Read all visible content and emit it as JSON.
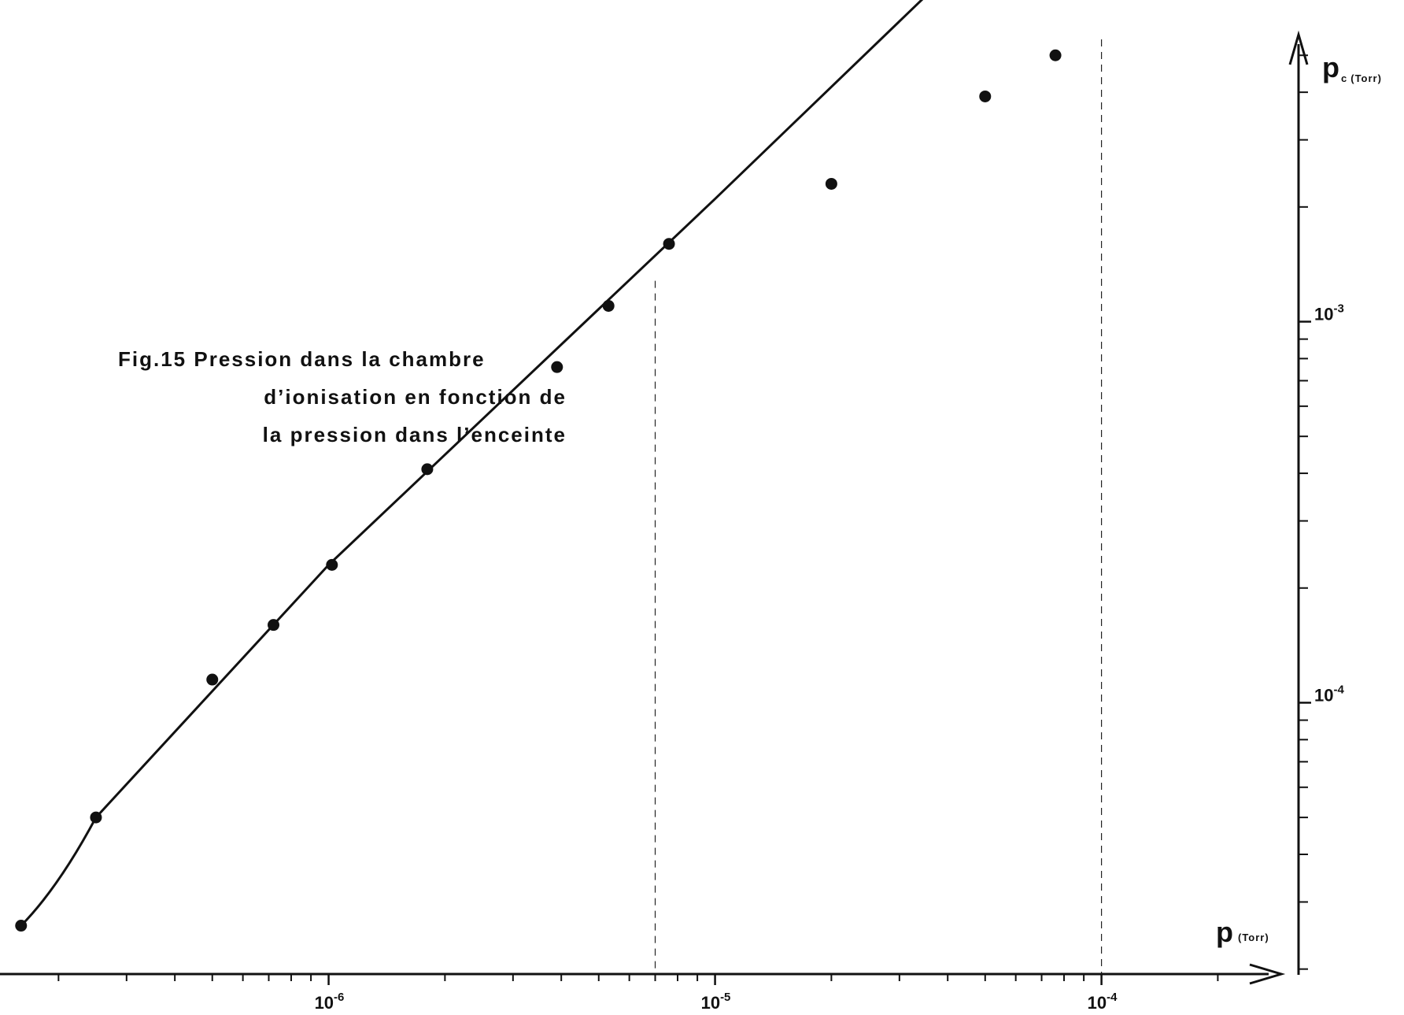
{
  "caption": {
    "line1": "Fig.15 Pression dans la chambre",
    "line2": "d’ionisation en fonction de",
    "line3": "la pression dans l’enceinte"
  },
  "chart_data": {
    "type": "scatter",
    "title": "Fig.15 Pression dans la chambre d’ionisation en fonction de la pression dans l’enceinte",
    "xlabel": "p (Torr)",
    "ylabel": "pc (Torr)",
    "x_axis": {
      "label_main": "p",
      "label_unit": "(Torr)",
      "scale": "log",
      "range": [
        1.55e-07,
        0.00025
      ],
      "tick_labels": [
        {
          "base": "10",
          "exp": "-6",
          "value": 1e-06
        },
        {
          "base": "10",
          "exp": "-5",
          "value": 1e-05
        },
        {
          "base": "10",
          "exp": "-4",
          "value": 0.0001
        }
      ],
      "minor_ticks": [
        2e-07,
        3e-07,
        4e-07,
        5e-07,
        6e-07,
        7e-07,
        8e-07,
        9e-07,
        2e-06,
        3e-06,
        4e-06,
        5e-06,
        6e-06,
        7e-06,
        8e-06,
        9e-06,
        2e-05,
        3e-05,
        4e-05,
        5e-05,
        6e-05,
        7e-05,
        8e-05,
        9e-05,
        0.0002
      ]
    },
    "y_axis": {
      "label_main": "p",
      "label_sub": "c",
      "label_unit": "(Torr)",
      "scale": "log",
      "position": "right",
      "range": [
        1.95e-05,
        0.0052
      ],
      "tick_labels": [
        {
          "base": "10",
          "exp": "-3",
          "value": 0.001
        },
        {
          "base": "10",
          "exp": "-4",
          "value": 0.0001
        }
      ],
      "minor_ticks": [
        2e-05,
        3e-05,
        4e-05,
        5e-05,
        6e-05,
        7e-05,
        8e-05,
        9e-05,
        0.0002,
        0.0003,
        0.0004,
        0.0005,
        0.0006,
        0.0007,
        0.0008,
        0.0009,
        0.002,
        0.003,
        0.004,
        0.005
      ]
    },
    "series": [
      {
        "type": "scatter",
        "points": [
          {
            "x": 1.6e-07,
            "y": 2.6e-05
          },
          {
            "x": 2.5e-07,
            "y": 5e-05
          },
          {
            "x": 5e-07,
            "y": 0.000115
          },
          {
            "x": 7.2e-07,
            "y": 0.00016
          },
          {
            "x": 1.02e-06,
            "y": 0.00023
          },
          {
            "x": 1.8e-06,
            "y": 0.00041
          },
          {
            "x": 3.9e-06,
            "y": 0.00076
          },
          {
            "x": 5.3e-06,
            "y": 0.0011
          },
          {
            "x": 7.6e-06,
            "y": 0.0016
          },
          {
            "x": 2e-05,
            "y": 0.0023
          },
          {
            "x": 5e-05,
            "y": 0.0039
          },
          {
            "x": 7.6e-05,
            "y": 0.005
          }
        ]
      },
      {
        "type": "line",
        "points": [
          {
            "x": 1.6e-07,
            "y": 2.6e-05
          },
          {
            "x": 2e-07,
            "y": 3.4e-05
          },
          {
            "x": 2.5e-07,
            "y": 5e-05
          },
          {
            "x": 1e-06,
            "y": 0.00023
          },
          {
            "x": 1e-05,
            "y": 0.0021
          },
          {
            "x": 8e-05,
            "y": 0.016
          }
        ]
      }
    ],
    "reference_lines": [
      {
        "orientation": "vertical",
        "x": 7e-06,
        "y_max": 0.00128,
        "style": "dashed"
      },
      {
        "orientation": "vertical",
        "x": 0.0001,
        "style": "dashed"
      }
    ],
    "grid": false,
    "legend": "none"
  }
}
